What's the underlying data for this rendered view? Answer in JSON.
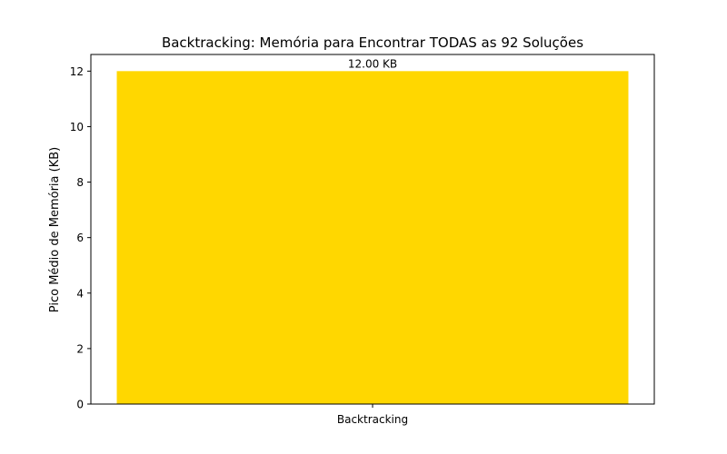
{
  "chart_data": {
    "type": "bar",
    "title": "Backtracking: Memória para Encontrar TODAS as 92 Soluções",
    "xlabel": "",
    "ylabel": "Pico Médio de Memória (KB)",
    "categories": [
      "Backtracking"
    ],
    "values": [
      12.0
    ],
    "bar_labels": [
      "12.00 KB"
    ],
    "ylim": [
      0,
      12.6
    ],
    "yticks": [
      0,
      2,
      4,
      6,
      8,
      10,
      12
    ],
    "bar_color": "#FFD700",
    "grid": false,
    "legend": "none"
  }
}
